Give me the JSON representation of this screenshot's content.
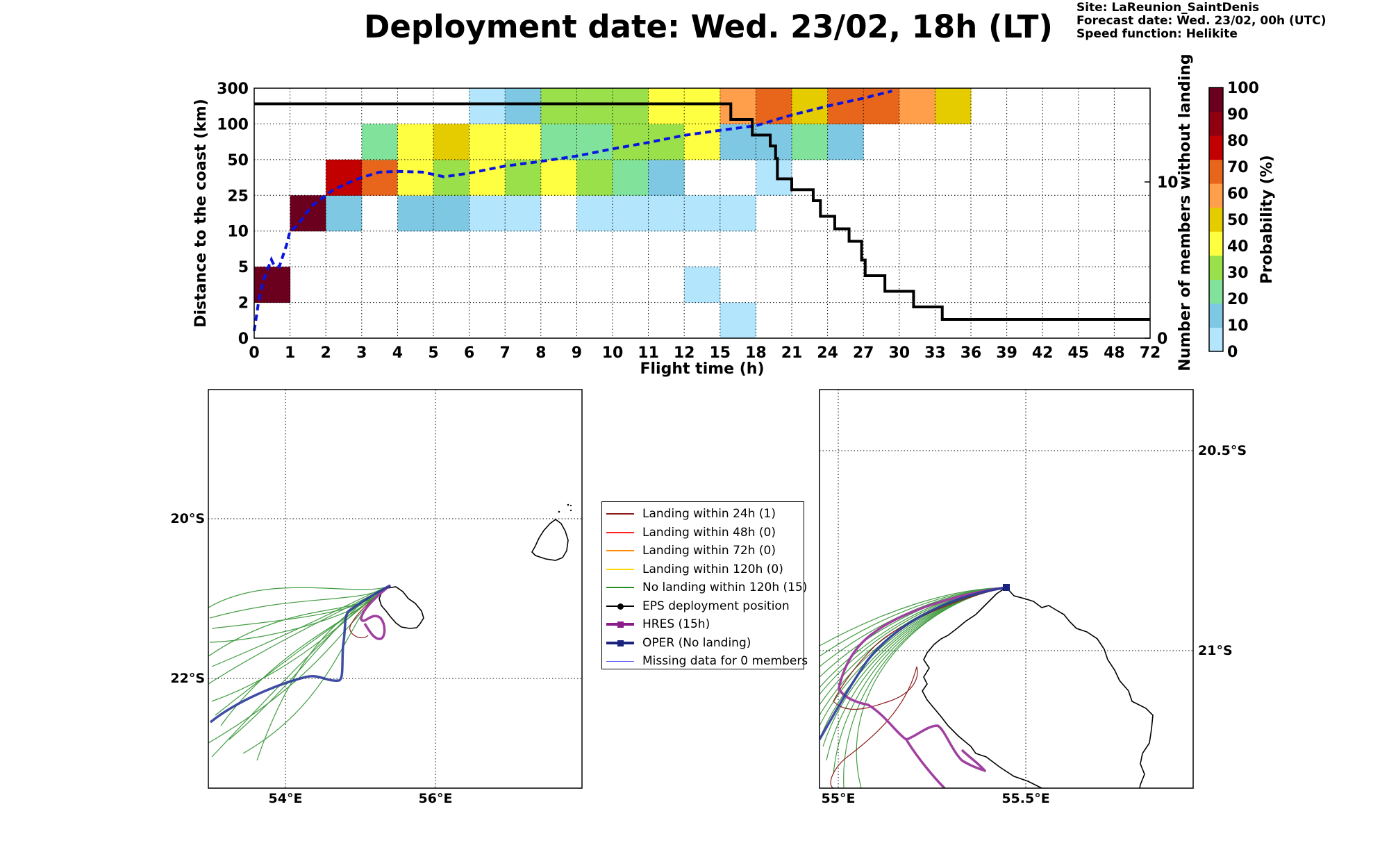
{
  "title": "Deployment date: Wed. 23/02, 18h (LT)",
  "meta": {
    "site": "Site: LaReunion_SaintDenis",
    "forecast": "Forecast date: Wed. 23/02, 00h (UTC)",
    "speed": "Speed function: Helikite"
  },
  "chart_data": [
    {
      "type": "heatmap",
      "xlabel": "Flight time (h)",
      "ylabel": "Distance to the coast (km)",
      "y2label": "Number of members without landing",
      "colorbar_label": "Probability (%)",
      "x_ticks": [
        "0",
        "1",
        "2",
        "3",
        "4",
        "5",
        "6",
        "7",
        "8",
        "9",
        "10",
        "11",
        "12",
        "15",
        "18",
        "21",
        "24",
        "27",
        "30",
        "33",
        "36",
        "39",
        "42",
        "45",
        "48",
        "72"
      ],
      "y_ticks": [
        "0",
        "2",
        "5",
        "10",
        "25",
        "50",
        "100",
        "300"
      ],
      "y2_ticks": [
        "0",
        "10"
      ],
      "y2_range": [
        0,
        16
      ],
      "colorbar_ticks": [
        "0",
        "10",
        "20",
        "30",
        "40",
        "50",
        "60",
        "70",
        "80",
        "90",
        "100"
      ],
      "colorbar_colors": [
        "#b3e5fc",
        "#7ec8e3",
        "#80e29b",
        "#99e04a",
        "#ffff42",
        "#e5cc00",
        "#ff9f4c",
        "#e8661c",
        "#c30000",
        "#8f0010",
        "#6a001e"
      ],
      "colors_hex": {
        "0": "#b3e5fc",
        "10": "#7ec8e3",
        "20": "#80e29b",
        "30": "#99e04a",
        "40": "#ffff42",
        "50": "#e5cc00",
        "60": "#ff9f4c",
        "70": "#e8661c",
        "80": "#c30000",
        "90": "#8f0010",
        "100": "#6a001e"
      },
      "cells": [
        {
          "x": 0,
          "y": 1,
          "p": 100
        },
        {
          "x": 1,
          "y": 3,
          "p": 100
        },
        {
          "x": 2,
          "y": 3,
          "p": 10
        },
        {
          "x": 2,
          "y": 4,
          "p": 80
        },
        {
          "x": 3,
          "y": 4,
          "p": 70
        },
        {
          "x": 3,
          "y": 5,
          "p": 20
        },
        {
          "x": 4,
          "y": 3,
          "p": 10
        },
        {
          "x": 4,
          "y": 4,
          "p": 40
        },
        {
          "x": 4,
          "y": 5,
          "p": 40
        },
        {
          "x": 5,
          "y": 3,
          "p": 10
        },
        {
          "x": 5,
          "y": 4,
          "p": 30
        },
        {
          "x": 5,
          "y": 5,
          "p": 50
        },
        {
          "x": 6,
          "y": 3,
          "p": 0
        },
        {
          "x": 6,
          "y": 4,
          "p": 40
        },
        {
          "x": 6,
          "y": 5,
          "p": 40
        },
        {
          "x": 6,
          "y": 6,
          "p": 0
        },
        {
          "x": 7,
          "y": 3,
          "p": 0
        },
        {
          "x": 7,
          "y": 4,
          "p": 30
        },
        {
          "x": 7,
          "y": 5,
          "p": 40
        },
        {
          "x": 7,
          "y": 6,
          "p": 10
        },
        {
          "x": 8,
          "y": 4,
          "p": 40
        },
        {
          "x": 8,
          "y": 5,
          "p": 20
        },
        {
          "x": 8,
          "y": 6,
          "p": 30
        },
        {
          "x": 9,
          "y": 3,
          "p": 0
        },
        {
          "x": 9,
          "y": 4,
          "p": 30
        },
        {
          "x": 9,
          "y": 5,
          "p": 20
        },
        {
          "x": 9,
          "y": 6,
          "p": 30
        },
        {
          "x": 10,
          "y": 3,
          "p": 0
        },
        {
          "x": 10,
          "y": 4,
          "p": 20
        },
        {
          "x": 10,
          "y": 5,
          "p": 30
        },
        {
          "x": 10,
          "y": 6,
          "p": 30
        },
        {
          "x": 11,
          "y": 3,
          "p": 0
        },
        {
          "x": 11,
          "y": 4,
          "p": 10
        },
        {
          "x": 11,
          "y": 5,
          "p": 30
        },
        {
          "x": 11,
          "y": 6,
          "p": 40
        },
        {
          "x": 12,
          "y": 1,
          "p": 0
        },
        {
          "x": 12,
          "y": 3,
          "p": 0
        },
        {
          "x": 12,
          "y": 5,
          "p": 40
        },
        {
          "x": 12,
          "y": 6,
          "p": 40
        },
        {
          "x": 13,
          "y": 0,
          "p": 0
        },
        {
          "x": 13,
          "y": 3,
          "p": 0
        },
        {
          "x": 13,
          "y": 5,
          "p": 10
        },
        {
          "x": 13,
          "y": 6,
          "p": 60
        },
        {
          "x": 14,
          "y": 4,
          "p": 0
        },
        {
          "x": 14,
          "y": 5,
          "p": 10
        },
        {
          "x": 14,
          "y": 6,
          "p": 70
        },
        {
          "x": 15,
          "y": 5,
          "p": 20
        },
        {
          "x": 15,
          "y": 6,
          "p": 50
        },
        {
          "x": 16,
          "y": 5,
          "p": 10
        },
        {
          "x": 16,
          "y": 6,
          "p": 70
        },
        {
          "x": 17,
          "y": 6,
          "p": 70
        },
        {
          "x": 18,
          "y": 6,
          "p": 60
        },
        {
          "x": 19,
          "y": 6,
          "p": 50
        }
      ],
      "dashed_mean_distance": [
        [
          0,
          0.2
        ],
        [
          0.12,
          1
        ],
        [
          0.25,
          1.6
        ],
        [
          0.4,
          2.0
        ],
        [
          0.48,
          2.2
        ],
        [
          0.55,
          2.05
        ],
        [
          0.7,
          2.0
        ],
        [
          0.9,
          2.6
        ],
        [
          1.0,
          3.0
        ],
        [
          1.2,
          3.15
        ],
        [
          1.6,
          3.7
        ],
        [
          2.2,
          4.15
        ],
        [
          2.7,
          4.38
        ],
        [
          3.0,
          4.5
        ],
        [
          3.5,
          4.65
        ],
        [
          4.0,
          4.67
        ],
        [
          4.7,
          4.65
        ],
        [
          5.3,
          4.52
        ],
        [
          6.0,
          4.62
        ],
        [
          7.0,
          4.82
        ],
        [
          8.0,
          4.95
        ],
        [
          9.0,
          5.1
        ],
        [
          10.0,
          5.3
        ],
        [
          11.0,
          5.48
        ],
        [
          12.0,
          5.68
        ],
        [
          13.0,
          5.82
        ],
        [
          14.0,
          5.95
        ],
        [
          15.0,
          6.25
        ],
        [
          16.0,
          6.5
        ],
        [
          17.0,
          6.72
        ],
        [
          17.8,
          6.92
        ]
      ],
      "members_without_landing_steps": [
        [
          0,
          15
        ],
        [
          13.3,
          15
        ],
        [
          13.3,
          14
        ],
        [
          13.9,
          14
        ],
        [
          13.9,
          13
        ],
        [
          14.4,
          13
        ],
        [
          14.4,
          12.3
        ],
        [
          14.55,
          12.3
        ],
        [
          14.55,
          11.5
        ],
        [
          14.6,
          11.5
        ],
        [
          14.6,
          10.2
        ],
        [
          15.0,
          10.2
        ],
        [
          15.0,
          9.5
        ],
        [
          15.6,
          9.5
        ],
        [
          15.6,
          8.8
        ],
        [
          15.8,
          8.8
        ],
        [
          15.8,
          7.8
        ],
        [
          16.2,
          7.8
        ],
        [
          16.2,
          7.0
        ],
        [
          16.6,
          7.0
        ],
        [
          16.6,
          6.2
        ],
        [
          16.95,
          6.2
        ],
        [
          16.95,
          5.0
        ],
        [
          17.05,
          5.0
        ],
        [
          17.05,
          4.0
        ],
        [
          17.6,
          4.0
        ],
        [
          17.6,
          3.0
        ],
        [
          18.4,
          3.0
        ],
        [
          18.4,
          2.0
        ],
        [
          19.2,
          2.0
        ],
        [
          19.2,
          1.2
        ],
        [
          25,
          1.2
        ]
      ]
    }
  ],
  "maps": {
    "left": {
      "lat_labels": [
        "20°S",
        "22°S"
      ],
      "lon_labels": [
        "54°E",
        "56°E"
      ]
    },
    "right": {
      "lat_labels": [
        "20.5°S",
        "21°S"
      ],
      "lon_labels": [
        "55°E",
        "55.5°E"
      ]
    }
  },
  "legend": {
    "entries": [
      {
        "label": "Landing within 24h (1)",
        "color": "#8b1a1a",
        "marker": "none",
        "width": 2
      },
      {
        "label": "Landing within 48h (0)",
        "color": "#ff2020",
        "marker": "none",
        "width": 2
      },
      {
        "label": "Landing within 72h (0)",
        "color": "#ff8c00",
        "marker": "none",
        "width": 2
      },
      {
        "label": "Landing within 120h (0)",
        "color": "#ffd700",
        "marker": "none",
        "width": 2
      },
      {
        "label": "No landing within 120h (15)",
        "color": "#228b22",
        "marker": "none",
        "width": 2
      },
      {
        "label": "EPS deployment position",
        "color": "#000000",
        "marker": "circle",
        "width": 2
      },
      {
        "label": "HRES (15h)",
        "color": "#8b1a8b",
        "marker": "square",
        "width": 4
      },
      {
        "label": "OPER (No landing)",
        "color": "#1a237e",
        "marker": "square",
        "width": 4
      },
      {
        "label": "Missing data for 0 members",
        "color": "#5a5aff",
        "marker": "none",
        "width": 1
      }
    ]
  }
}
